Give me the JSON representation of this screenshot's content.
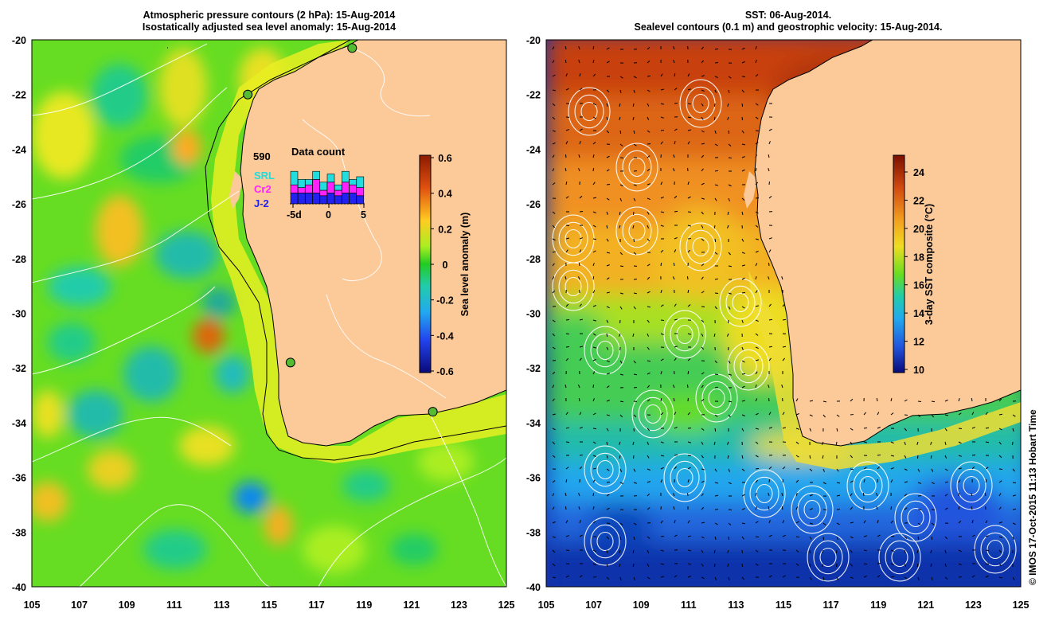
{
  "left_panel": {
    "title_line1": "Atmospheric pressure contours (2 hPa): 15-Aug-2014",
    "title_line2": "Isostatically adjusted sea level anomaly: 15-Aug-2014",
    "colorbar_label": "Sea level anomaly (m)",
    "colorbar_ticks": [
      "0.6",
      "0.4",
      "0.2",
      "0",
      "-0.2",
      "-0.4",
      "-0.6"
    ],
    "data_count": {
      "total": "590",
      "title": "Data count",
      "missions": [
        "SRL",
        "Cr2",
        "J-2"
      ],
      "mission_colors": [
        "#22dddd",
        "#ff22ff",
        "#2222ee"
      ],
      "x_ticks": [
        "-5d",
        "0",
        "5"
      ],
      "bars": [
        {
          "j2": 4,
          "cr2": 3,
          "srl": 5
        },
        {
          "j2": 4,
          "cr2": 2,
          "srl": 3
        },
        {
          "j2": 4,
          "cr2": 3,
          "srl": 2
        },
        {
          "j2": 4,
          "cr2": 5,
          "srl": 3
        },
        {
          "j2": 3,
          "cr2": 2,
          "srl": 3
        },
        {
          "j2": 4,
          "cr2": 4,
          "srl": 3
        },
        {
          "j2": 3,
          "cr2": 2,
          "srl": 2
        },
        {
          "j2": 4,
          "cr2": 4,
          "srl": 4
        },
        {
          "j2": 4,
          "cr2": 3,
          "srl": 2
        },
        {
          "j2": 3,
          "cr2": 3,
          "srl": 4
        }
      ]
    }
  },
  "right_panel": {
    "title_line1": "SST: 06-Aug-2014.",
    "title_line2": "Sealevel contours (0.1 m) and geostrophic velocity: 15-Aug-2014.",
    "colorbar_label": "3-day SST composite (°C)",
    "colorbar_ticks": [
      "24",
      "22",
      "20",
      "18",
      "16",
      "14",
      "12",
      "10"
    ]
  },
  "axes": {
    "lat_labels": [
      "-20",
      "-22",
      "-24",
      "-26",
      "-28",
      "-30",
      "-32",
      "-34",
      "-36",
      "-38",
      "-40"
    ],
    "lon_labels": [
      "105",
      "107",
      "109",
      "111",
      "113",
      "115",
      "117",
      "119",
      "121",
      "123",
      "125"
    ]
  },
  "tide_gauges": [
    {
      "lon": 118.5,
      "lat": -20.3
    },
    {
      "lon": 114.1,
      "lat": -22.0
    },
    {
      "lon": 115.9,
      "lat": -31.8
    },
    {
      "lon": 121.9,
      "lat": -33.6
    }
  ],
  "credit": "© IMOS 17-Oct-2015 11:13 Hobart Time",
  "colors": {
    "land": "#fcc998",
    "sla_background": "#66dd22",
    "sst_cold": "#1133aa",
    "sst_warm": "#cc4411"
  }
}
